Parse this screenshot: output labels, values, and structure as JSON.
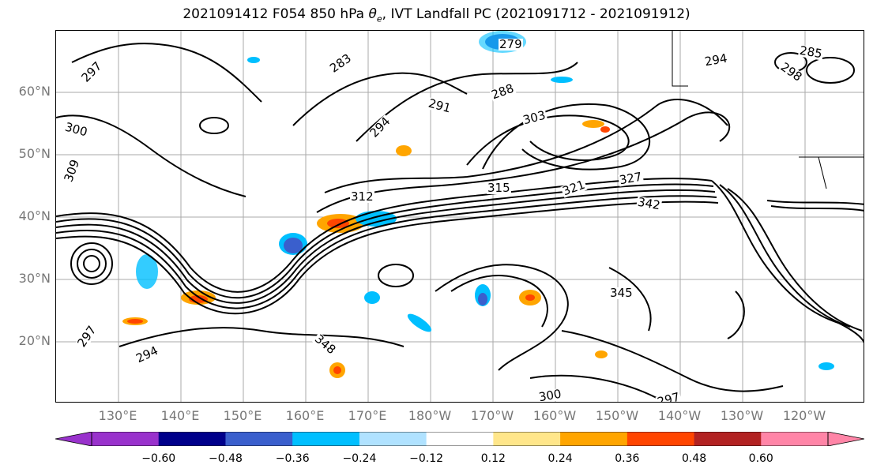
{
  "title": {
    "prefix": "2021091412 F054 850 hPa ",
    "symbol": "θ",
    "subscript": "e",
    "suffix": ", IVT Landfall PC (2021091712 - 2021091912)"
  },
  "map": {
    "lat_labels": [
      "60°N",
      "50°N",
      "40°N",
      "30°N",
      "20°N"
    ],
    "lat_values": [
      60,
      50,
      40,
      30,
      20
    ],
    "lon_labels": [
      "130°E",
      "140°E",
      "150°E",
      "160°E",
      "170°E",
      "180°W",
      "170°W",
      "160°W",
      "150°W",
      "140°W",
      "130°W",
      "120°W"
    ],
    "contour_labels": [
      "279",
      "283",
      "288",
      "291",
      "294",
      "297",
      "300",
      "303",
      "309",
      "312",
      "315",
      "321",
      "327",
      "342",
      "345",
      "348",
      "294",
      "297",
      "300",
      "297",
      "294",
      "298",
      "285"
    ]
  },
  "colorbar": {
    "tick_labels": [
      "−0.60",
      "−0.48",
      "−0.36",
      "−0.24",
      "−0.12",
      "0.12",
      "0.24",
      "0.36",
      "0.48",
      "0.60"
    ],
    "tick_values": [
      -0.6,
      -0.48,
      -0.36,
      -0.24,
      -0.12,
      0.12,
      0.24,
      0.36,
      0.48,
      0.6
    ],
    "colors": [
      "#9932cc",
      "#00008b",
      "#3a5fcd",
      "#00bfff",
      "#b0e2ff",
      "#ffffff",
      "#ffe68a",
      "#ffa500",
      "#ff4500",
      "#b22222",
      "#ff85a7",
      "#ff85a7"
    ]
  }
}
